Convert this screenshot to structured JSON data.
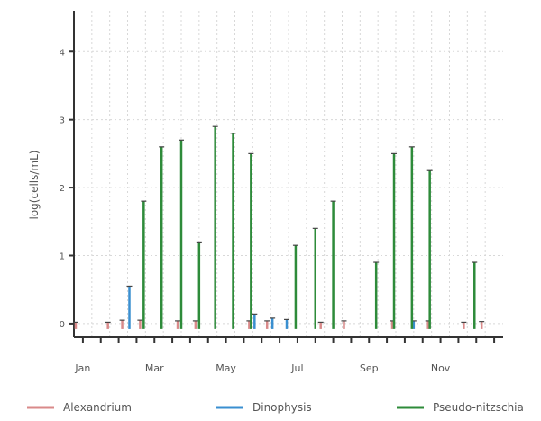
{
  "chart_data": {
    "type": "bar",
    "ylabel": "log(cells/mL)",
    "ylim": [
      -0.2,
      4.6
    ],
    "yticks": [
      {
        "value": 0,
        "label": "0"
      },
      {
        "value": 1,
        "label": "1"
      },
      {
        "value": 2,
        "label": "2"
      },
      {
        "value": 3,
        "label": "3"
      },
      {
        "value": 4,
        "label": "4"
      }
    ],
    "xlim": [
      0.5,
      24.5
    ],
    "xticks": [
      {
        "pos": 1,
        "label": "Jan"
      },
      {
        "pos": 5,
        "label": "Mar"
      },
      {
        "pos": 9,
        "label": "May"
      },
      {
        "pos": 13,
        "label": "Jul"
      },
      {
        "pos": 17,
        "label": "Sep"
      },
      {
        "pos": 21,
        "label": "Nov"
      }
    ],
    "grid": true,
    "legend_position": "bottom",
    "series": [
      {
        "name": "Alexandrium",
        "color": "#d98a8a",
        "points": [
          {
            "x": 0.6,
            "y": 0.02
          },
          {
            "x": 2.4,
            "y": 0.02
          },
          {
            "x": 3.2,
            "y": 0.05
          },
          {
            "x": 4.2,
            "y": 0.05
          },
          {
            "x": 6.3,
            "y": 0.04
          },
          {
            "x": 7.3,
            "y": 0.04
          },
          {
            "x": 10.3,
            "y": 0.04
          },
          {
            "x": 11.3,
            "y": 0.04
          },
          {
            "x": 14.3,
            "y": 0.02
          },
          {
            "x": 15.6,
            "y": 0.04
          },
          {
            "x": 18.3,
            "y": 0.04
          },
          {
            "x": 20.3,
            "y": 0.04
          },
          {
            "x": 22.3,
            "y": 0.02
          },
          {
            "x": 23.3,
            "y": 0.03
          }
        ]
      },
      {
        "name": "Dinophysis",
        "color": "#3a8fd0",
        "points": [
          {
            "x": 3.6,
            "y": 0.55
          },
          {
            "x": 10.6,
            "y": 0.14
          },
          {
            "x": 11.6,
            "y": 0.08
          },
          {
            "x": 12.4,
            "y": 0.06
          },
          {
            "x": 19.5,
            "y": 0.04
          }
        ]
      },
      {
        "name": "Pseudo-nitzschia",
        "color": "#2e8b3a",
        "points": [
          {
            "x": 4.4,
            "y": 1.8
          },
          {
            "x": 5.4,
            "y": 2.6
          },
          {
            "x": 6.5,
            "y": 2.7
          },
          {
            "x": 7.5,
            "y": 1.2
          },
          {
            "x": 8.4,
            "y": 2.9
          },
          {
            "x": 9.4,
            "y": 2.8
          },
          {
            "x": 10.4,
            "y": 2.5
          },
          {
            "x": 12.9,
            "y": 1.15
          },
          {
            "x": 14.0,
            "y": 1.4
          },
          {
            "x": 15.0,
            "y": 1.8
          },
          {
            "x": 17.4,
            "y": 0.9
          },
          {
            "x": 18.4,
            "y": 2.5
          },
          {
            "x": 19.4,
            "y": 2.6
          },
          {
            "x": 20.4,
            "y": 2.25
          },
          {
            "x": 22.9,
            "y": 0.9
          }
        ]
      }
    ]
  }
}
